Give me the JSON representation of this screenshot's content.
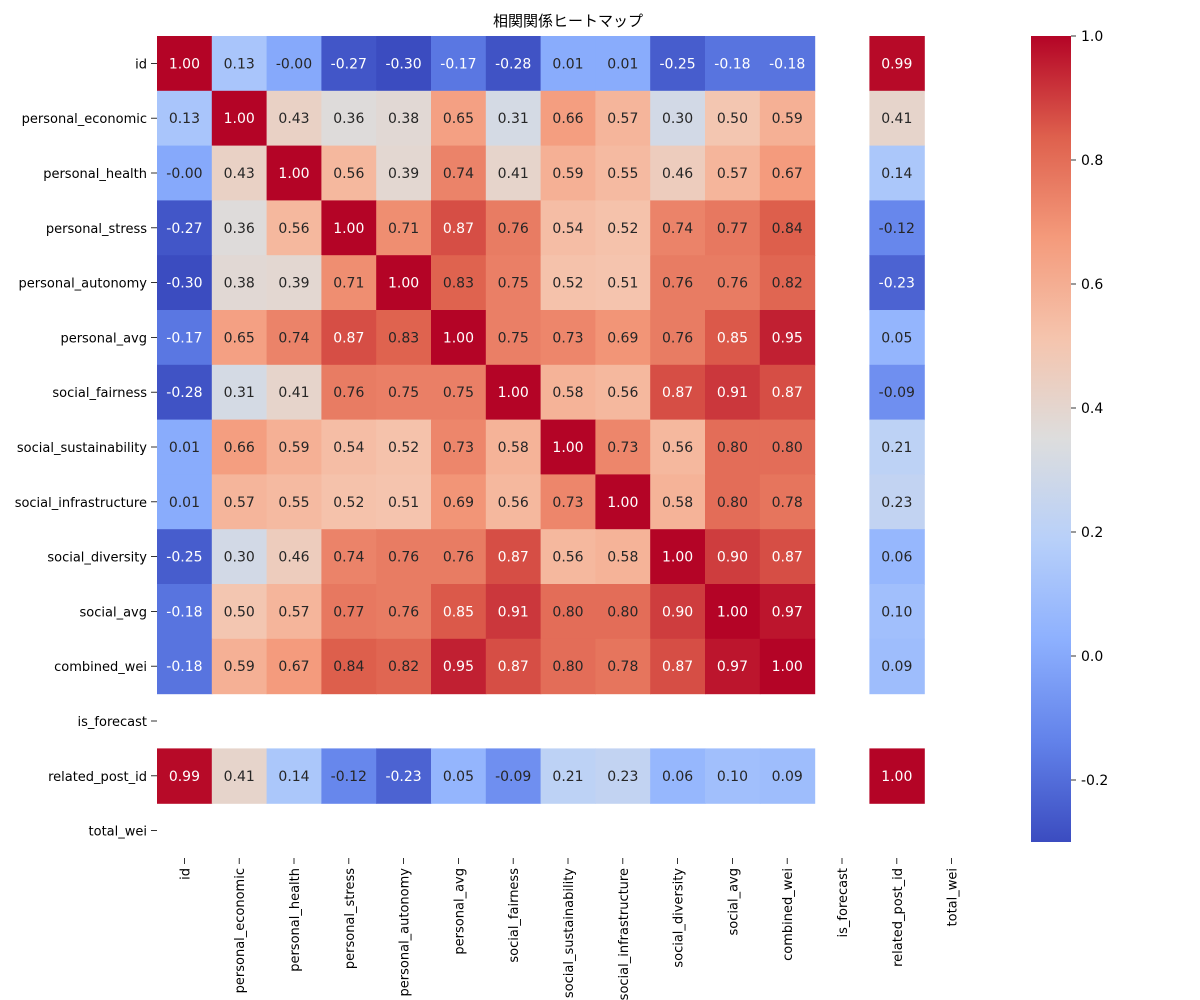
{
  "chart_data": {
    "type": "heatmap",
    "title": "相関関係ヒートマップ",
    "xlabel": "",
    "ylabel": "",
    "labels": [
      "id",
      "personal_economic",
      "personal_health",
      "personal_stress",
      "personal_autonomy",
      "personal_avg",
      "social_fairness",
      "social_sustainability",
      "social_infrastructure",
      "social_diversity",
      "social_avg",
      "combined_wei",
      "is_forecast",
      "related_post_id",
      "total_wei"
    ],
    "matrix": [
      [
        1.0,
        0.13,
        -0.0,
        -0.27,
        -0.3,
        -0.17,
        -0.28,
        0.01,
        0.01,
        -0.25,
        -0.18,
        -0.18,
        null,
        0.99,
        null
      ],
      [
        0.13,
        1.0,
        0.43,
        0.36,
        0.38,
        0.65,
        0.31,
        0.66,
        0.57,
        0.3,
        0.5,
        0.59,
        null,
        0.41,
        null
      ],
      [
        -0.0,
        0.43,
        1.0,
        0.56,
        0.39,
        0.74,
        0.41,
        0.59,
        0.55,
        0.46,
        0.57,
        0.67,
        null,
        0.14,
        null
      ],
      [
        -0.27,
        0.36,
        0.56,
        1.0,
        0.71,
        0.87,
        0.76,
        0.54,
        0.52,
        0.74,
        0.77,
        0.84,
        null,
        -0.12,
        null
      ],
      [
        -0.3,
        0.38,
        0.39,
        0.71,
        1.0,
        0.83,
        0.75,
        0.52,
        0.51,
        0.76,
        0.76,
        0.82,
        null,
        -0.23,
        null
      ],
      [
        -0.17,
        0.65,
        0.74,
        0.87,
        0.83,
        1.0,
        0.75,
        0.73,
        0.69,
        0.76,
        0.85,
        0.95,
        null,
        0.05,
        null
      ],
      [
        -0.28,
        0.31,
        0.41,
        0.76,
        0.75,
        0.75,
        1.0,
        0.58,
        0.56,
        0.87,
        0.91,
        0.87,
        null,
        -0.09,
        null
      ],
      [
        0.01,
        0.66,
        0.59,
        0.54,
        0.52,
        0.73,
        0.58,
        1.0,
        0.73,
        0.56,
        0.8,
        0.8,
        null,
        0.21,
        null
      ],
      [
        0.01,
        0.57,
        0.55,
        0.52,
        0.51,
        0.69,
        0.56,
        0.73,
        1.0,
        0.58,
        0.8,
        0.78,
        null,
        0.23,
        null
      ],
      [
        -0.25,
        0.3,
        0.46,
        0.74,
        0.76,
        0.76,
        0.87,
        0.56,
        0.58,
        1.0,
        0.9,
        0.87,
        null,
        0.06,
        null
      ],
      [
        -0.18,
        0.5,
        0.57,
        0.77,
        0.76,
        0.85,
        0.91,
        0.8,
        0.8,
        0.9,
        1.0,
        0.97,
        null,
        0.1,
        null
      ],
      [
        -0.18,
        0.59,
        0.67,
        0.84,
        0.82,
        0.95,
        0.87,
        0.8,
        0.78,
        0.87,
        0.97,
        1.0,
        null,
        0.09,
        null
      ],
      [
        null,
        null,
        null,
        null,
        null,
        null,
        null,
        null,
        null,
        null,
        null,
        null,
        null,
        null,
        null
      ],
      [
        0.99,
        0.41,
        0.14,
        -0.12,
        -0.23,
        0.05,
        -0.09,
        0.21,
        0.23,
        0.06,
        0.1,
        0.09,
        null,
        1.0,
        null
      ],
      [
        null,
        null,
        null,
        null,
        null,
        null,
        null,
        null,
        null,
        null,
        null,
        null,
        null,
        null,
        null
      ]
    ],
    "colormap": "coolwarm",
    "vmin": -0.3,
    "vmax": 1.0,
    "colorbar_ticks": [
      "1.0",
      "0.8",
      "0.6",
      "0.4",
      "0.2",
      "0.0",
      "-0.2"
    ],
    "colorbar_tick_values": [
      1.0,
      0.8,
      0.6,
      0.4,
      0.2,
      0.0,
      -0.2
    ],
    "value_format": "2 decimals",
    "grid": false,
    "legend": "colorbar-right"
  }
}
